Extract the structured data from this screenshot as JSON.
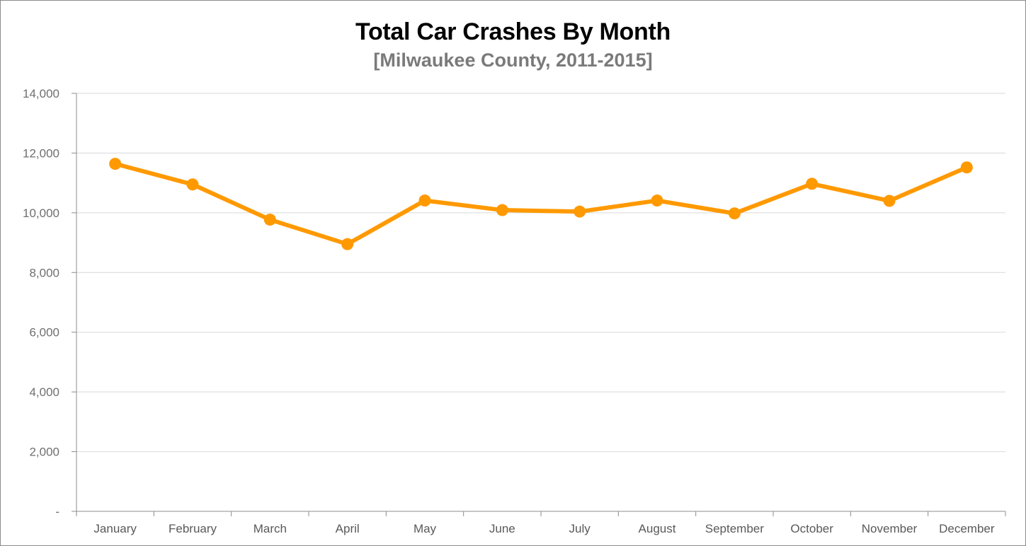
{
  "chart_data": {
    "type": "line",
    "title": "Total Car Crashes By Month",
    "subtitle": "[Milwaukee County, 2011-2015]",
    "xlabel": "",
    "ylabel": "",
    "categories": [
      "January",
      "February",
      "March",
      "April",
      "May",
      "June",
      "July",
      "August",
      "September",
      "October",
      "November",
      "December"
    ],
    "series": [
      {
        "values": [
          11640,
          10950,
          9770,
          8950,
          10410,
          10090,
          10040,
          10410,
          9980,
          10970,
          10400,
          11520
        ]
      }
    ],
    "ylim": [
      0,
      14000
    ],
    "yticks": [
      0,
      2000,
      4000,
      6000,
      8000,
      10000,
      12000,
      14000
    ],
    "ytick_labels": [
      "-",
      "2,000",
      "4,000",
      "6,000",
      "8,000",
      "10,000",
      "12,000",
      "14,000"
    ],
    "grid": true,
    "legend": "none",
    "colors": {
      "line": "#ff9900",
      "grid": "#d9d9d9",
      "axis": "#8c8c8c"
    }
  }
}
